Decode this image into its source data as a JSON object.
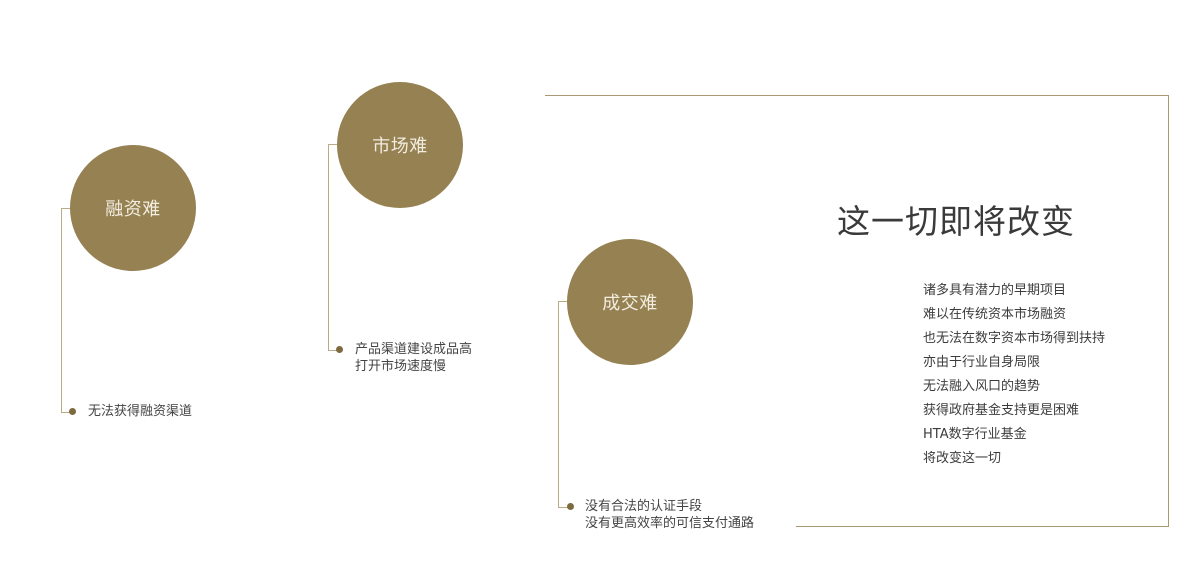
{
  "headline": "这一切即将改变",
  "challenges": [
    {
      "title": "融资难",
      "lines": [
        "无法获得融资渠道"
      ]
    },
    {
      "title": "市场难",
      "lines": [
        "产品渠道建设成品高",
        "打开市场速度慢"
      ]
    },
    {
      "title": "成交难",
      "lines": [
        "没有合法的认证手段",
        "没有更高效率的可信支付通路"
      ]
    }
  ],
  "statement": [
    "诸多具有潜力的早期项目",
    "难以在传统资本市场融资",
    "也无法在数字资本市场得到扶持",
    "亦由于行业自身局限",
    "无法融入风口的趋势",
    "获得政府基金支持更是困难",
    "HTA数字行业基金",
    "将改变这一切"
  ],
  "colors": {
    "circle": "#958152",
    "circle_text": "#f3ede0",
    "connector": "#b9ab86",
    "dot": "#7d6a3f",
    "frame": "#a89874"
  }
}
